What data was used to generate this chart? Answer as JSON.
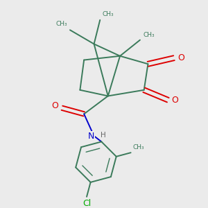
{
  "background_color": "#ebebeb",
  "bond_color": "#3a7a5a",
  "o_color": "#dd0000",
  "n_color": "#0000cc",
  "cl_color": "#00aa00",
  "h_color": "#666666",
  "line_width": 1.4,
  "figsize": [
    3.0,
    3.0
  ],
  "dpi": 100,
  "xlim": [
    0,
    10
  ],
  "ylim": [
    0,
    10
  ]
}
